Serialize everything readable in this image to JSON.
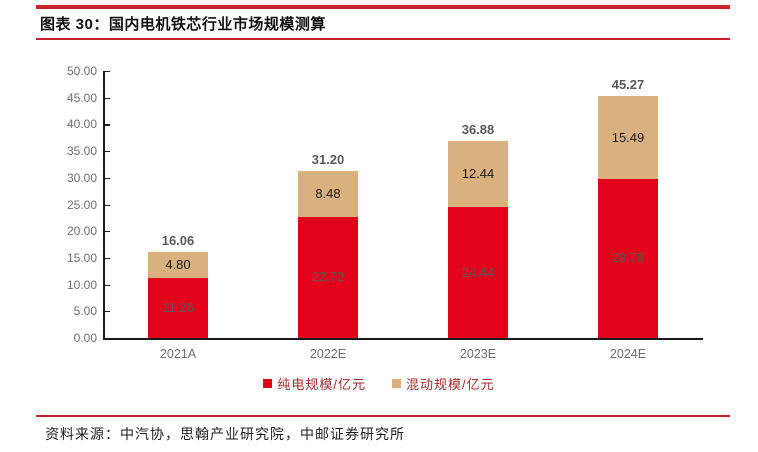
{
  "header": {
    "title": "图表 30：国内电机铁芯行业市场规模测算"
  },
  "footer": {
    "source": "资料来源：中汽协，思翰产业研究院，中邮证券研究所"
  },
  "colors": {
    "rule_red": "#c9242b",
    "pure_ev_red": "#e3001b",
    "hybrid_tan": "#d9b17e",
    "axis": "#1a1a1a",
    "tick_label_gray": "#6e6e6e",
    "value_label_gray": "#595959",
    "legend_text": "#9c2b2b"
  },
  "chart_data": {
    "type": "bar",
    "stacked": true,
    "title": "国内电机铁芯行业市场规模测算",
    "categories": [
      "2021A",
      "2022E",
      "2023E",
      "2024E"
    ],
    "series": [
      {
        "name": "纯电规模/亿元",
        "color": "#e3001b",
        "values": [
          11.26,
          22.72,
          24.44,
          29.78
        ]
      },
      {
        "name": "混动规模/亿元",
        "color": "#d9b17e",
        "values": [
          4.8,
          8.48,
          12.44,
          15.49
        ]
      }
    ],
    "totals": [
      16.06,
      31.2,
      36.88,
      45.27
    ],
    "xlabel": "",
    "ylabel": "",
    "ylim": [
      0,
      50
    ],
    "ytick_step": 5,
    "ytick_labels": [
      "0.00",
      "5.00",
      "10.00",
      "15.00",
      "20.00",
      "25.00",
      "30.00",
      "35.00",
      "40.00",
      "45.00",
      "50.00"
    ],
    "grid": false,
    "legend_position": "bottom"
  }
}
